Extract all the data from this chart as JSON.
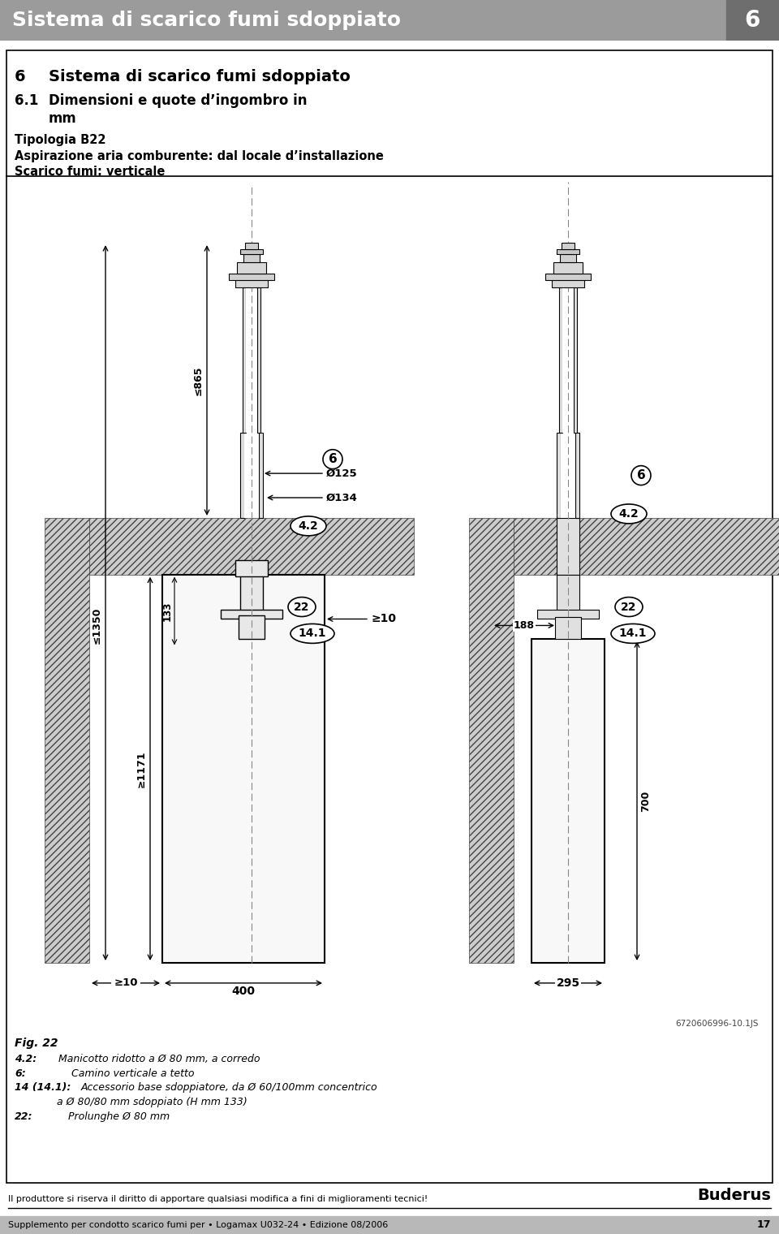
{
  "header_bg": "#9b9b9b",
  "header_num_bg": "#6e6e6e",
  "header_text": "Sistema di scarico fumi sdoppiato",
  "header_num": "6",
  "header_text_color": "#ffffff",
  "section_num": "6",
  "section_title": "Sistema di scarico fumi sdoppiato",
  "subsec_num": "6.1",
  "subsec_title": "Dimensioni e quote d’ingombro in mm",
  "tipologia": "Tipologia B22",
  "aspirazione": "Aspirazione aria comburente: dal locale d’installazione",
  "scarico": "Scarico fumi: verticale",
  "fig_label": "Fig. 22",
  "note_42_bold": "4.2:",
  "note_42_text": "   Manicotto ridotto a Ø 80 mm, a corredo",
  "note_6_bold": "6:",
  "note_6_text": "       Camino verticale a tetto",
  "note_14_bold": "14 (14.1):",
  "note_14_text": "Accessorio base sdoppiatore, da Ø 60/100mm concentrico",
  "note_14b_text": "             a Ø 80/80 mm sdoppiato (H mm 133)",
  "note_22_bold": "22:",
  "note_22_text": "      Prolunghe Ø 80 mm",
  "footer_left": "Il produttore si riserva il diritto di apportare qualsiasi modifica a fini di miglioramenti tecnici!",
  "footer_brand": "Buderus",
  "footer_bottom": "Supplemento per condotto scarico fumi per • Logamax U032-24 • Edizione 08/2006",
  "footer_page": "17",
  "ref_code": "6720606996-10.1JS",
  "bg_color": "#ffffff",
  "border_color": "#000000",
  "hatch_color": "#aaaaaa",
  "pipe_fill": "#e8e8e8",
  "pipe_edge": "#000000"
}
